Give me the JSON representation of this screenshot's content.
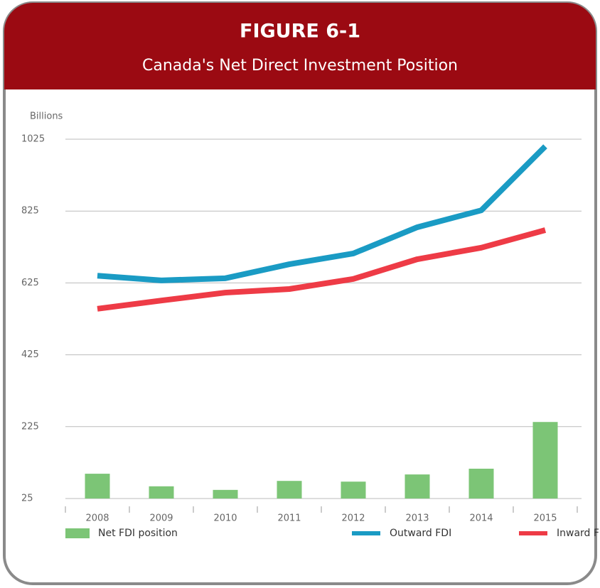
{
  "chart_data": {
    "type": "bar-line",
    "title": "FIGURE 6-1",
    "subtitle": "Canada's Net Direct Investment Position",
    "y_label": "Billions",
    "categories": [
      "2008",
      "2009",
      "2010",
      "2011",
      "2012",
      "2013",
      "2014",
      "2015"
    ],
    "bar_series": {
      "name": "Net FDI position",
      "color": "#7cc576",
      "values": [
        94,
        59,
        49,
        74,
        72,
        92,
        108,
        238
      ]
    },
    "series": [
      {
        "name": "Outward FDI",
        "color": "#1a9bc4",
        "values": [
          645,
          632,
          638,
          677,
          707,
          780,
          827,
          1005
        ]
      },
      {
        "name": "Inward FDI",
        "color": "#ee3b46",
        "values": [
          553,
          576,
          598,
          608,
          636,
          691,
          723,
          772
        ]
      }
    ],
    "ylim": [
      25,
      1025
    ],
    "yticks": [
      25,
      225,
      425,
      625,
      825,
      1025
    ],
    "grid": true
  }
}
